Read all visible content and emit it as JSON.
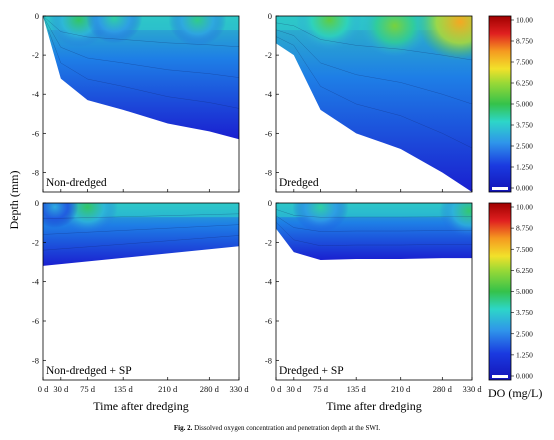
{
  "caption": {
    "label": "Fig. 2.",
    "text": "Dissolved oxygen concentration and penetration depth at the SWI."
  },
  "colors": {
    "deep_blue": "#1a1fd0",
    "blue": "#1e5ae6",
    "light_blue": "#2fa0ea",
    "cyan": "#2dd6c8",
    "green": "#35c24a",
    "yellow": "#f2e12a",
    "orange": "#f59a20",
    "red": "#e02020",
    "dark_red": "#a00000"
  },
  "chart_data": {
    "type": "heatmap",
    "xlabel": "Time after dredging",
    "ylabel": "Depth (mm)",
    "x_ticks": [
      "0 d",
      "30 d",
      "75 d",
      "135 d",
      "210 d",
      "280 d",
      "330 d"
    ],
    "x_values": [
      0,
      30,
      75,
      135,
      210,
      280,
      330
    ],
    "y_ticks": [
      "0",
      "-2",
      "-4",
      "-6",
      "-8"
    ],
    "ylim": [
      -9,
      0
    ],
    "xlim": [
      0,
      330
    ],
    "colorbar": {
      "label": "DO (mg/L)",
      "ticks": [
        "10.00",
        "8.750",
        "7.500",
        "6.250",
        "5.000",
        "3.750",
        "2.500",
        "1.250",
        "0.000"
      ],
      "range": [
        0,
        10
      ]
    },
    "panels": [
      {
        "name": "Non-dredged",
        "penetration_depth": [
          [
            0,
            0
          ],
          [
            30,
            -3.2
          ],
          [
            75,
            -4.3
          ],
          [
            135,
            -4.8
          ],
          [
            210,
            -5.5
          ],
          [
            280,
            -5.9
          ],
          [
            330,
            -6.3
          ]
        ],
        "do_hotspots": [
          {
            "t": 60,
            "d": -0.2,
            "do": 4.8
          },
          {
            "t": 120,
            "d": -0.1,
            "do": 4.3
          },
          {
            "t": 260,
            "d": -0.2,
            "do": 4.5
          }
        ]
      },
      {
        "name": "Dredged",
        "penetration_depth": [
          [
            0,
            -1.4
          ],
          [
            30,
            -2.0
          ],
          [
            75,
            -4.8
          ],
          [
            135,
            -6.0
          ],
          [
            210,
            -6.8
          ],
          [
            280,
            -8.0
          ],
          [
            330,
            -9.0
          ]
        ],
        "do_hotspots": [
          {
            "t": 90,
            "d": -0.2,
            "do": 5.5
          },
          {
            "t": 200,
            "d": -0.5,
            "do": 5.8
          },
          {
            "t": 310,
            "d": -0.3,
            "do": 7.8
          }
        ]
      },
      {
        "name": "Non-dredged + SP",
        "penetration_depth": [
          [
            0,
            -3.2
          ],
          [
            330,
            -2.2
          ]
        ],
        "do_hotspots": [
          {
            "t": 75,
            "d": -0.2,
            "do": 4.8
          },
          {
            "t": 20,
            "d": -0.2,
            "do": 3.2
          }
        ]
      },
      {
        "name": "Dredged + SP",
        "penetration_depth": [
          [
            0,
            -1.3
          ],
          [
            30,
            -2.5
          ],
          [
            75,
            -2.9
          ],
          [
            135,
            -2.85
          ],
          [
            210,
            -2.85
          ],
          [
            280,
            -2.8
          ],
          [
            330,
            -2.8
          ]
        ],
        "do_hotspots": [
          {
            "t": 75,
            "d": -0.2,
            "do": 4.3
          },
          {
            "t": 325,
            "d": -0.4,
            "do": 4.7
          }
        ]
      }
    ]
  }
}
